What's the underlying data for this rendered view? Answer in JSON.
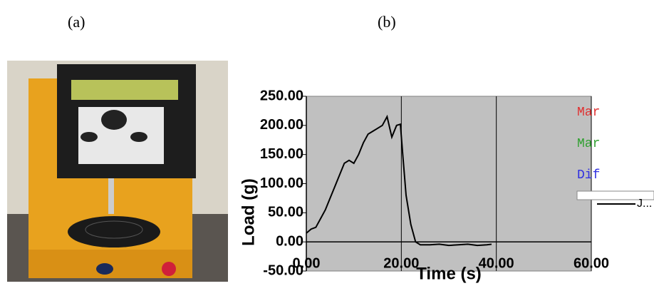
{
  "panels": [
    "(a)",
    "(b)"
  ],
  "chart_data": {
    "type": "line",
    "xlabel": "Time (s)",
    "ylabel": "Load (g)",
    "x": [
      0,
      1,
      2,
      3,
      4,
      5,
      6,
      7,
      8,
      9,
      10,
      11,
      12,
      13,
      14,
      15,
      16,
      17,
      18,
      19,
      19.8,
      20.3,
      21,
      22,
      23,
      24,
      26,
      28,
      30,
      32,
      34,
      36,
      38,
      39
    ],
    "series": [
      {
        "name": "J...",
        "color": "#000000",
        "values": [
          15,
          22,
          25,
          40,
          55,
          75,
          95,
          115,
          135,
          140,
          135,
          150,
          170,
          185,
          190,
          195,
          200,
          215,
          180,
          200,
          202,
          150,
          80,
          30,
          0,
          -5,
          -5,
          -4,
          -6,
          -5,
          -4,
          -6,
          -5,
          -4
        ]
      }
    ],
    "xlim": [
      0,
      60
    ],
    "xticks": [
      {
        "value": 0,
        "label": "0.00"
      },
      {
        "value": 20,
        "label": "20.00"
      },
      {
        "value": 40,
        "label": "40.00"
      },
      {
        "value": 60,
        "label": "60.00"
      }
    ],
    "ylim": [
      -50,
      250
    ],
    "yticks": [
      {
        "value": -50,
        "label": "-50.00"
      },
      {
        "value": 0,
        "label": "0.00"
      },
      {
        "value": 50,
        "label": "50.00"
      },
      {
        "value": 100,
        "label": "100.00"
      },
      {
        "value": 150,
        "label": "150.00"
      },
      {
        "value": 200,
        "label": "200.00"
      },
      {
        "value": 250,
        "label": "250.00"
      }
    ],
    "xgrid": true,
    "annotations": [
      {
        "text": "Mar",
        "color": "#e03030"
      },
      {
        "text": "Mar",
        "color": "#30a030"
      },
      {
        "text": "Dif",
        "color": "#3030e0"
      }
    ]
  }
}
